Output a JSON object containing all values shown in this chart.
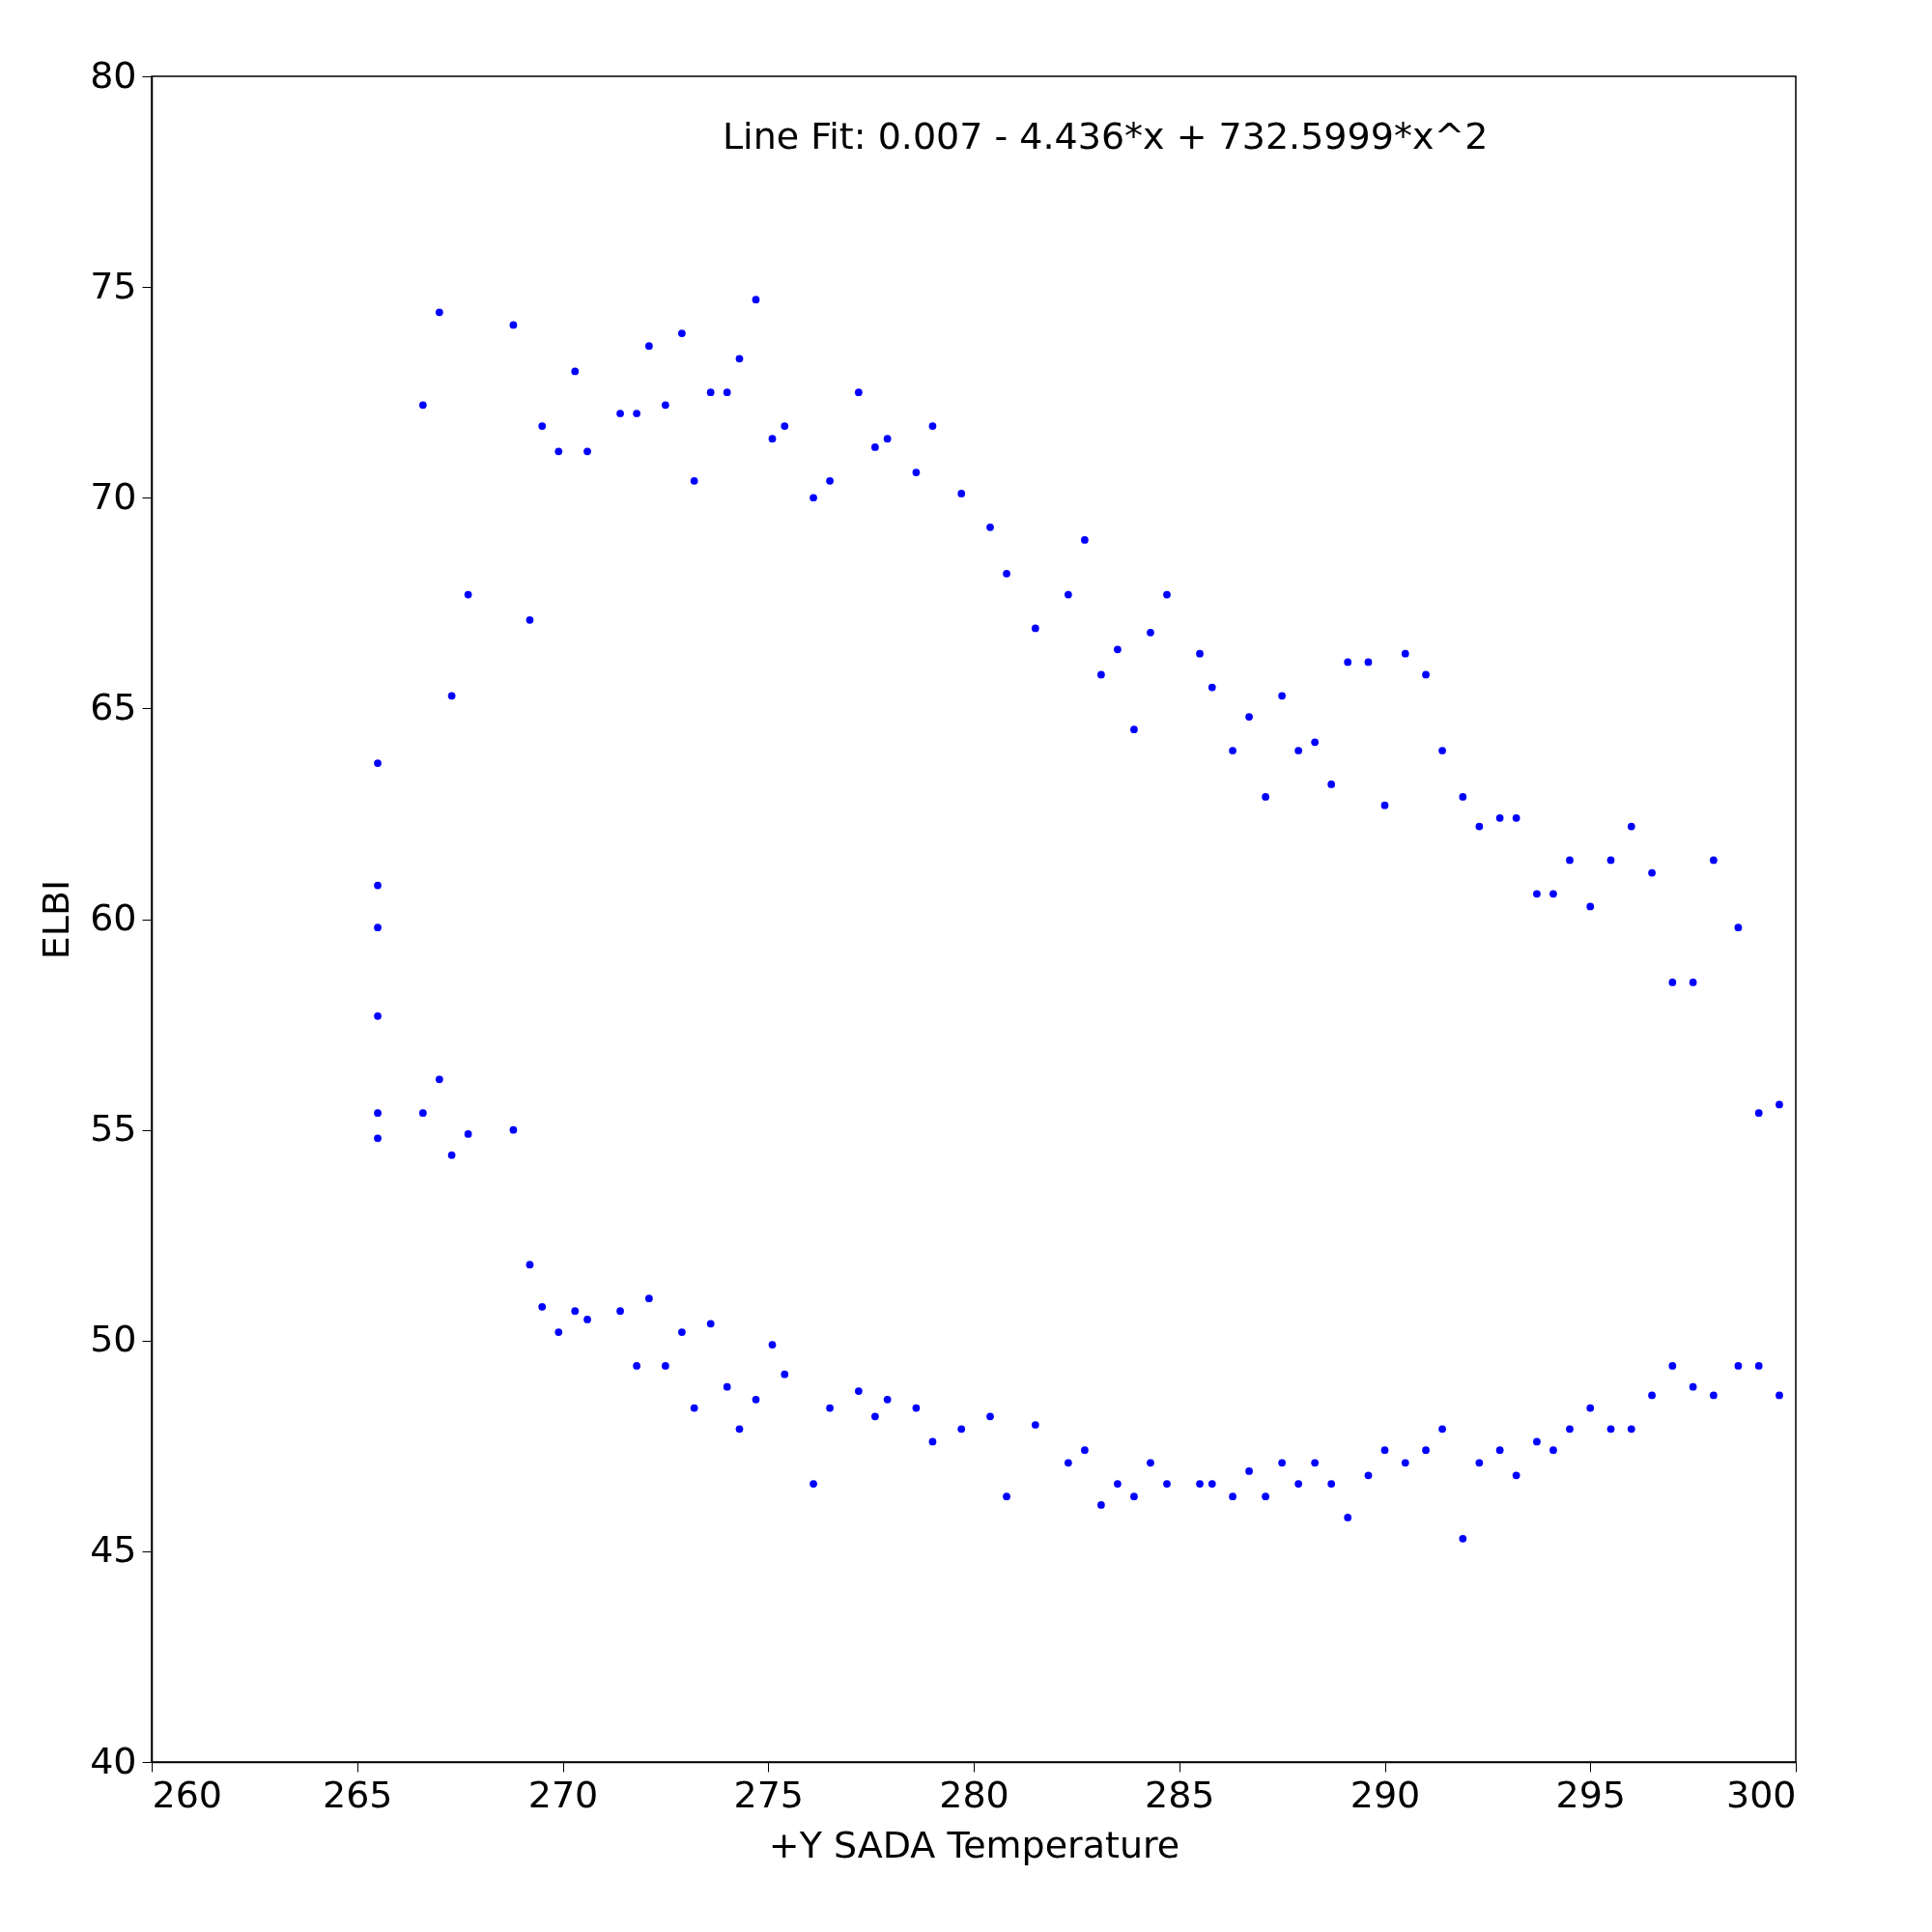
{
  "chart_data": {
    "type": "scatter",
    "xlabel": "+Y SADA Temperature",
    "ylabel": "ELBI",
    "annotations": [
      "Line Fit: 0.007  - 4.436*x + 732.5999*x^2"
    ],
    "xlim": [
      260,
      300
    ],
    "ylim": [
      40,
      80
    ],
    "xticks": [
      260,
      265,
      270,
      275,
      280,
      285,
      290,
      295,
      300
    ],
    "yticks": [
      40,
      45,
      50,
      55,
      60,
      65,
      70,
      75,
      80
    ],
    "grid": false,
    "marker": "circle",
    "series": [
      {
        "color": "#0000ff",
        "x": [
          265.5,
          265.5,
          265.5,
          265.5,
          265.5,
          265.5,
          266.6,
          266.6,
          267.0,
          267.0,
          267.3,
          267.3,
          267.7,
          267.7,
          268.8,
          268.8,
          269.2,
          269.2,
          269.5,
          269.5,
          269.9,
          269.9,
          270.3,
          270.3,
          270.6,
          270.6,
          271.4,
          271.4,
          271.8,
          271.8,
          272.1,
          272.1,
          272.5,
          272.5,
          272.9,
          272.9,
          273.2,
          273.2,
          273.6,
          273.6,
          274.0,
          274.0,
          274.3,
          274.3,
          274.7,
          274.7,
          275.1,
          275.1,
          275.4,
          275.4,
          276.1,
          276.1,
          276.5,
          276.5,
          277.2,
          277.2,
          277.6,
          277.6,
          277.9,
          277.9,
          278.6,
          278.6,
          279.0,
          279.0,
          279.7,
          279.7,
          280.4,
          280.4,
          280.8,
          280.8,
          281.5,
          281.5,
          282.3,
          282.3,
          282.7,
          282.7,
          283.1,
          283.1,
          283.5,
          283.5,
          283.9,
          283.9,
          284.3,
          284.3,
          284.7,
          284.7,
          285.5,
          285.5,
          285.8,
          285.8,
          286.3,
          286.3,
          286.7,
          286.7,
          287.1,
          287.1,
          287.5,
          287.5,
          287.9,
          287.9,
          288.3,
          288.3,
          288.7,
          288.7,
          289.1,
          289.1,
          289.6,
          289.6,
          290.0,
          290.0,
          290.5,
          290.5,
          291.0,
          291.0,
          291.4,
          291.4,
          291.9,
          291.9,
          292.3,
          292.3,
          292.8,
          292.8,
          293.2,
          293.2,
          293.7,
          293.7,
          294.1,
          294.1,
          294.5,
          294.5,
          295.0,
          295.0,
          295.5,
          295.5,
          296.0,
          296.0,
          296.5,
          296.5,
          297.0,
          297.0,
          297.5,
          297.5,
          298.0,
          298.0,
          298.6,
          298.6,
          299.1,
          299.1,
          299.6,
          299.6
        ],
        "values": [
          63.7,
          60.8,
          59.8,
          57.7,
          55.4,
          54.8,
          72.2,
          55.4,
          74.4,
          56.2,
          65.3,
          54.4,
          67.7,
          54.9,
          74.1,
          55.0,
          67.1,
          51.8,
          71.7,
          50.8,
          71.1,
          50.2,
          73.0,
          50.7,
          71.1,
          50.5,
          72.0,
          50.7,
          72.0,
          49.4,
          73.6,
          51.0,
          72.2,
          49.4,
          73.9,
          50.2,
          70.4,
          48.4,
          72.5,
          50.4,
          72.5,
          48.9,
          73.3,
          47.9,
          74.7,
          48.6,
          71.4,
          49.9,
          71.7,
          49.2,
          70.0,
          46.6,
          70.4,
          48.4,
          72.5,
          48.8,
          71.2,
          48.2,
          71.4,
          48.6,
          70.6,
          48.4,
          71.7,
          47.6,
          70.1,
          47.9,
          69.3,
          48.2,
          68.2,
          46.3,
          66.9,
          48.0,
          67.7,
          47.1,
          69.0,
          47.4,
          65.8,
          46.1,
          66.4,
          46.6,
          64.5,
          46.3,
          66.8,
          47.1,
          67.7,
          46.6,
          66.3,
          46.6,
          65.5,
          46.6,
          64.0,
          46.3,
          64.8,
          46.9,
          62.9,
          46.3,
          65.3,
          47.1,
          64.0,
          46.6,
          64.2,
          47.1,
          63.2,
          46.6,
          66.1,
          45.8,
          66.1,
          46.8,
          62.7,
          47.4,
          66.3,
          47.1,
          65.8,
          47.4,
          64.0,
          47.9,
          62.9,
          45.3,
          62.2,
          47.1,
          62.4,
          47.4,
          62.4,
          46.8,
          60.6,
          47.6,
          60.6,
          47.4,
          61.4,
          47.9,
          60.3,
          48.4,
          61.4,
          47.9,
          62.2,
          47.9,
          61.1,
          48.7,
          58.5,
          49.4,
          58.5,
          48.9,
          61.4,
          48.7,
          59.8,
          49.4,
          55.4,
          49.4,
          55.6,
          48.7
        ]
      }
    ]
  }
}
